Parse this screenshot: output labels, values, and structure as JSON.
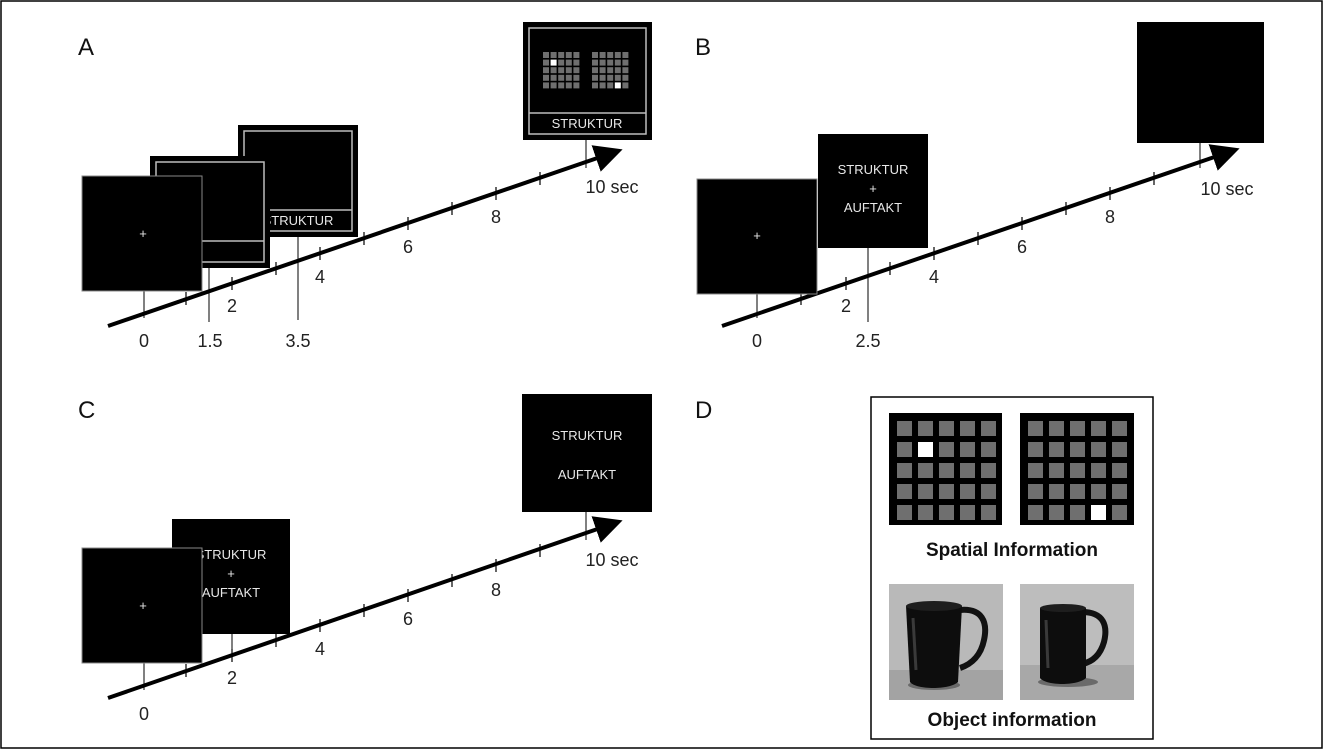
{
  "figure": {
    "colors": {
      "screen": "#000000",
      "frame": "#bdbdbd",
      "axis": "#000000",
      "grid_cell": "#6f6f6f",
      "highlight": "#ffffff"
    },
    "panels": [
      {
        "letter": "A",
        "ticks": [
          "0",
          "2",
          "4",
          "6",
          "8",
          "10 sec"
        ],
        "marks": [
          "1.5",
          "3.5"
        ],
        "screens": [
          {
            "type": "fixation",
            "glyph": "+"
          },
          {
            "type": "frame",
            "text": ""
          },
          {
            "type": "frame",
            "text": "STRUKTUR"
          },
          {
            "type": "grid-probe",
            "text": "STRUKTUR"
          }
        ]
      },
      {
        "letter": "B",
        "ticks": [
          "0",
          "2",
          "4",
          "6",
          "8",
          "10 sec"
        ],
        "marks": [
          "2.5"
        ],
        "screens": [
          {
            "type": "fixation",
            "glyph": "+"
          },
          {
            "type": "words",
            "lines": [
              "STRUKTUR",
              "+",
              "AUFTAKT"
            ]
          },
          {
            "type": "blank"
          }
        ]
      },
      {
        "letter": "C",
        "ticks": [
          "0",
          "2",
          "4",
          "6",
          "8",
          "10 sec"
        ],
        "marks": [],
        "screens": [
          {
            "type": "fixation",
            "glyph": "+"
          },
          {
            "type": "words",
            "lines": [
              "STRUKTUR",
              "+",
              "AUFTAKT"
            ]
          },
          {
            "type": "words",
            "lines": [
              "STRUKTUR",
              "AUFTAKT"
            ]
          }
        ]
      },
      {
        "letter": "D",
        "captions": [
          "Spatial Information",
          "Object information"
        ],
        "grids": [
          {
            "rows": 5,
            "cols": 5,
            "highlight_row": 1,
            "highlight_col": 1
          },
          {
            "rows": 5,
            "cols": 5,
            "highlight_row": 4,
            "highlight_col": 3
          }
        ],
        "photos": [
          "mug-photo-1",
          "mug-photo-2"
        ]
      }
    ]
  }
}
